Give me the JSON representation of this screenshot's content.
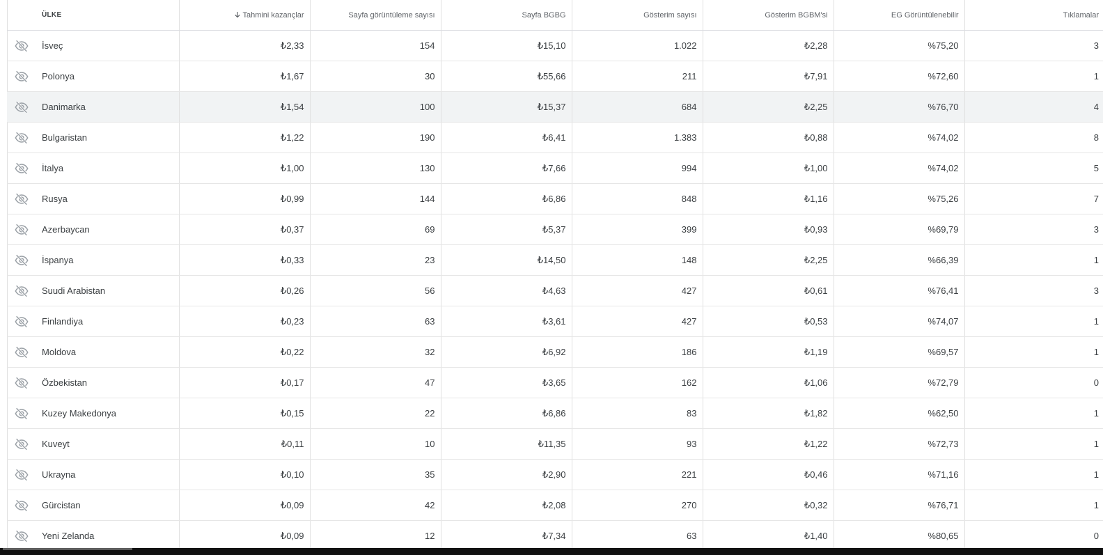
{
  "table": {
    "headers": {
      "country": "ÜLKE",
      "earnings": "Tahmini kazançlar",
      "page_views": "Sayfa görüntüleme sayısı",
      "page_rpm": "Sayfa BGBG",
      "impressions": "Gösterim sayısı",
      "impression_rpm": "Gösterim BGBM'si",
      "viewable": "EG Görüntülenebilir",
      "clicks": "Tıklamalar"
    },
    "sorted_column": "earnings",
    "sort_direction": "descending",
    "icons": {
      "row_toggle": "eye-off-icon",
      "sort": "arrow-down-icon"
    },
    "highlighted_row": "Danimarka",
    "rows": [
      {
        "country": "İsveç",
        "earnings": "₺2,33",
        "page_views": "154",
        "page_rpm": "₺15,10",
        "impressions": "1.022",
        "impression_rpm": "₺2,28",
        "viewable": "%75,20",
        "clicks": "3"
      },
      {
        "country": "Polonya",
        "earnings": "₺1,67",
        "page_views": "30",
        "page_rpm": "₺55,66",
        "impressions": "211",
        "impression_rpm": "₺7,91",
        "viewable": "%72,60",
        "clicks": "1"
      },
      {
        "country": "Danimarka",
        "earnings": "₺1,54",
        "page_views": "100",
        "page_rpm": "₺15,37",
        "impressions": "684",
        "impression_rpm": "₺2,25",
        "viewable": "%76,70",
        "clicks": "4"
      },
      {
        "country": "Bulgaristan",
        "earnings": "₺1,22",
        "page_views": "190",
        "page_rpm": "₺6,41",
        "impressions": "1.383",
        "impression_rpm": "₺0,88",
        "viewable": "%74,02",
        "clicks": "8"
      },
      {
        "country": "İtalya",
        "earnings": "₺1,00",
        "page_views": "130",
        "page_rpm": "₺7,66",
        "impressions": "994",
        "impression_rpm": "₺1,00",
        "viewable": "%74,02",
        "clicks": "5"
      },
      {
        "country": "Rusya",
        "earnings": "₺0,99",
        "page_views": "144",
        "page_rpm": "₺6,86",
        "impressions": "848",
        "impression_rpm": "₺1,16",
        "viewable": "%75,26",
        "clicks": "7"
      },
      {
        "country": "Azerbaycan",
        "earnings": "₺0,37",
        "page_views": "69",
        "page_rpm": "₺5,37",
        "impressions": "399",
        "impression_rpm": "₺0,93",
        "viewable": "%69,79",
        "clicks": "3"
      },
      {
        "country": "İspanya",
        "earnings": "₺0,33",
        "page_views": "23",
        "page_rpm": "₺14,50",
        "impressions": "148",
        "impression_rpm": "₺2,25",
        "viewable": "%66,39",
        "clicks": "1"
      },
      {
        "country": "Suudi Arabistan",
        "earnings": "₺0,26",
        "page_views": "56",
        "page_rpm": "₺4,63",
        "impressions": "427",
        "impression_rpm": "₺0,61",
        "viewable": "%76,41",
        "clicks": "3"
      },
      {
        "country": "Finlandiya",
        "earnings": "₺0,23",
        "page_views": "63",
        "page_rpm": "₺3,61",
        "impressions": "427",
        "impression_rpm": "₺0,53",
        "viewable": "%74,07",
        "clicks": "1"
      },
      {
        "country": "Moldova",
        "earnings": "₺0,22",
        "page_views": "32",
        "page_rpm": "₺6,92",
        "impressions": "186",
        "impression_rpm": "₺1,19",
        "viewable": "%69,57",
        "clicks": "1"
      },
      {
        "country": "Özbekistan",
        "earnings": "₺0,17",
        "page_views": "47",
        "page_rpm": "₺3,65",
        "impressions": "162",
        "impression_rpm": "₺1,06",
        "viewable": "%72,79",
        "clicks": "0"
      },
      {
        "country": "Kuzey Makedonya",
        "earnings": "₺0,15",
        "page_views": "22",
        "page_rpm": "₺6,86",
        "impressions": "83",
        "impression_rpm": "₺1,82",
        "viewable": "%62,50",
        "clicks": "1"
      },
      {
        "country": "Kuveyt",
        "earnings": "₺0,11",
        "page_views": "10",
        "page_rpm": "₺11,35",
        "impressions": "93",
        "impression_rpm": "₺1,22",
        "viewable": "%72,73",
        "clicks": "1"
      },
      {
        "country": "Ukrayna",
        "earnings": "₺0,10",
        "page_views": "35",
        "page_rpm": "₺2,90",
        "impressions": "221",
        "impression_rpm": "₺0,46",
        "viewable": "%71,16",
        "clicks": "1"
      },
      {
        "country": "Gürcistan",
        "earnings": "₺0,09",
        "page_views": "42",
        "page_rpm": "₺2,08",
        "impressions": "270",
        "impression_rpm": "₺0,32",
        "viewable": "%76,71",
        "clicks": "1"
      },
      {
        "country": "Yeni Zelanda",
        "earnings": "₺0,09",
        "page_views": "12",
        "page_rpm": "₺7,34",
        "impressions": "63",
        "impression_rpm": "₺1,40",
        "viewable": "%80,65",
        "clicks": "0"
      }
    ]
  },
  "colors": {
    "header_text": "#5f6368",
    "cell_text": "#3c4043",
    "grid_line": "#e0e0e0",
    "highlight_row": "#f1f3f4",
    "icon": "#9aa0a6",
    "bottom_bar": "#111111"
  }
}
